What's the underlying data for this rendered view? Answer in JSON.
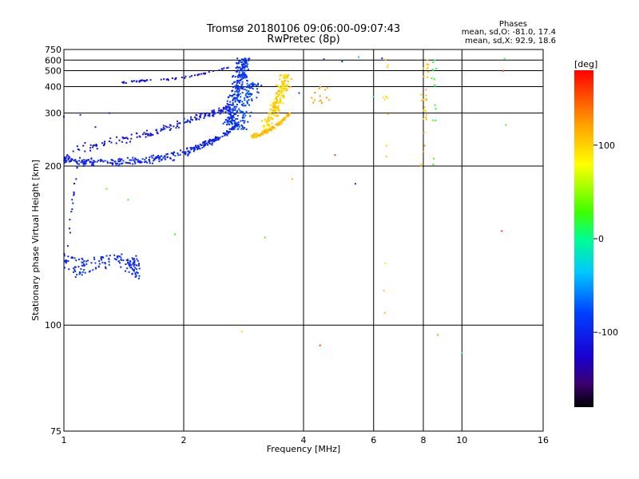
{
  "chart_data": {
    "type": "scatter",
    "title": "Tromsø 20180106 09:06:00-09:07:43",
    "subtitle": "RwPretec (8p)",
    "xlabel": "Frequency [MHz]",
    "ylabel": "Stationary phase Virtual Height [km]",
    "xscale": "log",
    "yscale": "reciprocal",
    "xlim": [
      1,
      16
    ],
    "ylim": [
      75,
      750
    ],
    "xticks": [
      1,
      2,
      4,
      6,
      8,
      10,
      16
    ],
    "yticks": [
      75,
      100,
      200,
      300,
      400,
      500,
      600,
      750
    ],
    "grid": true,
    "phases": {
      "title": "Phases",
      "line1": "mean, sd,O: -81.0, 17.4",
      "line2": "mean, sd,X:  92.9, 18.6"
    },
    "colorbar": {
      "label": "[deg]",
      "range": [
        -180,
        180
      ],
      "ticks": [
        100,
        0,
        -100
      ],
      "placement": "right"
    },
    "traces": [
      {
        "freq": [
          1.0,
          1.1,
          1.2,
          1.4,
          1.6,
          1.8,
          2.0,
          2.2,
          2.4,
          2.6,
          2.75
        ],
        "height": [
          210,
          205,
          205,
          206,
          208,
          212,
          218,
          228,
          240,
          255,
          275
        ],
        "spread": 8,
        "count": 340,
        "phase": -100
      },
      {
        "freq": [
          1.0,
          1.2,
          1.4,
          1.6,
          1.8,
          2.0,
          2.2,
          2.4,
          2.6
        ],
        "height": [
          220,
          228,
          240,
          250,
          262,
          275,
          290,
          302,
          320
        ],
        "spread": 12,
        "count": 160,
        "phase": -110
      },
      {
        "freq": [
          2.6,
          2.65,
          2.7,
          2.75,
          2.8,
          2.85
        ],
        "height": [
          270,
          310,
          360,
          420,
          500,
          620
        ],
        "spread": 0.06,
        "count": 260,
        "phase": -90
      },
      {
        "freq": [
          2.75,
          2.8,
          2.9,
          3.0
        ],
        "height": [
          260,
          300,
          360,
          420
        ],
        "spread": 0.07,
        "count": 110,
        "phase": -80
      },
      {
        "freq": [
          2.95,
          3.1,
          3.3,
          3.5,
          3.7
        ],
        "height": [
          245,
          250,
          260,
          275,
          300
        ],
        "spread": 6,
        "count": 140,
        "phase": 110
      },
      {
        "freq": [
          3.2,
          3.35,
          3.45,
          3.55,
          3.6
        ],
        "height": [
          260,
          300,
          340,
          400,
          470
        ],
        "spread": 0.05,
        "count": 200,
        "phase": 100
      },
      {
        "freq": [
          1.4,
          1.5,
          1.6,
          1.8,
          2.0,
          2.2,
          2.4,
          2.6
        ],
        "height": [
          420,
          428,
          432,
          440,
          450,
          470,
          500,
          530
        ],
        "spread": 8,
        "count": 55,
        "phase": -110
      },
      {
        "freq": [
          1.0,
          1.1,
          1.2,
          1.3,
          1.4,
          1.5,
          1.55
        ],
        "height": [
          125,
          122,
          124,
          126,
          125,
          123,
          121
        ],
        "spread": 7,
        "count": 150,
        "phase": -95
      },
      {
        "freq": [
          1.02,
          1.05,
          1.08
        ],
        "height": [
          130,
          160,
          200
        ],
        "spread": 12,
        "count": 15,
        "phase": -100
      },
      {
        "freq": [
          8.05,
          8.1,
          8.15
        ],
        "height": [
          200,
          380,
          600
        ],
        "spread": 0.03,
        "count": 30,
        "phase": 110
      },
      {
        "freq": [
          6.4,
          6.45
        ],
        "height": [
          110,
          620
        ],
        "spread": 0.02,
        "count": 12,
        "phase": 100
      },
      {
        "freq": [
          8.5,
          8.55
        ],
        "height": [
          200,
          610
        ],
        "spread": 0.02,
        "count": 16,
        "phase": 20
      },
      {
        "freq": [
          4.3,
          4.5
        ],
        "height": [
          330,
          400
        ],
        "spread": 0.1,
        "count": 14,
        "phase": 120
      }
    ],
    "sparse": [
      [
        4.5,
        610,
        -100
      ],
      [
        5.0,
        585,
        -90
      ],
      [
        5.5,
        635,
        -40
      ],
      [
        6.3,
        620,
        -100
      ],
      [
        12.8,
        615,
        10
      ],
      [
        12.7,
        500,
        160
      ],
      [
        12.9,
        270,
        30
      ],
      [
        12.6,
        142,
        160
      ],
      [
        10.0,
        92,
        10
      ],
      [
        8.7,
        97,
        30
      ],
      [
        5.4,
        180,
        -100
      ],
      [
        6.4,
        104,
        110
      ],
      [
        4.4,
        94,
        160
      ],
      [
        2.8,
        98,
        100
      ],
      [
        1.9,
        140,
        30
      ],
      [
        3.2,
        138,
        30
      ],
      [
        1.28,
        175,
        40
      ],
      [
        1.45,
        165,
        20
      ],
      [
        4.8,
        215,
        160
      ],
      [
        3.75,
        185,
        110
      ],
      [
        6.0,
        355,
        10
      ],
      [
        3.9,
        370,
        -80
      ],
      [
        1.0,
        290,
        -100
      ],
      [
        1.1,
        295,
        -90
      ],
      [
        1.3,
        300,
        -100
      ],
      [
        1.2,
        265,
        -110
      ]
    ]
  }
}
